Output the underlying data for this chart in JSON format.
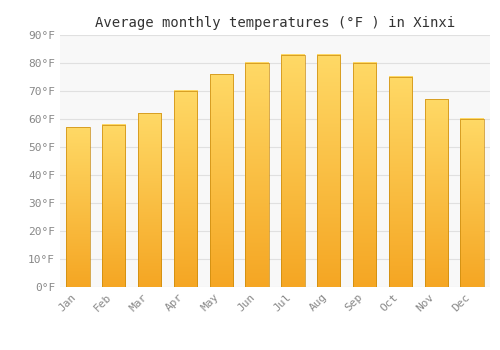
{
  "title": "Average monthly temperatures (°F ) in Xinxi",
  "months": [
    "Jan",
    "Feb",
    "Mar",
    "Apr",
    "May",
    "Jun",
    "Jul",
    "Aug",
    "Sep",
    "Oct",
    "Nov",
    "Dec"
  ],
  "values": [
    57,
    58,
    62,
    70,
    76,
    80,
    83,
    83,
    80,
    75,
    67,
    60
  ],
  "bar_color_bottom": "#F5A623",
  "bar_color_top": "#FFD966",
  "bar_edge_color": "#C8880A",
  "ylim": [
    0,
    90
  ],
  "yticks": [
    0,
    10,
    20,
    30,
    40,
    50,
    60,
    70,
    80,
    90
  ],
  "ytick_labels": [
    "0°F",
    "10°F",
    "20°F",
    "30°F",
    "40°F",
    "50°F",
    "60°F",
    "70°F",
    "80°F",
    "90°F"
  ],
  "background_color": "#ffffff",
  "plot_bg_color": "#f8f8f8",
  "grid_color": "#e0e0e0",
  "title_fontsize": 10,
  "tick_fontsize": 8,
  "font_family": "monospace",
  "tick_color": "#888888"
}
